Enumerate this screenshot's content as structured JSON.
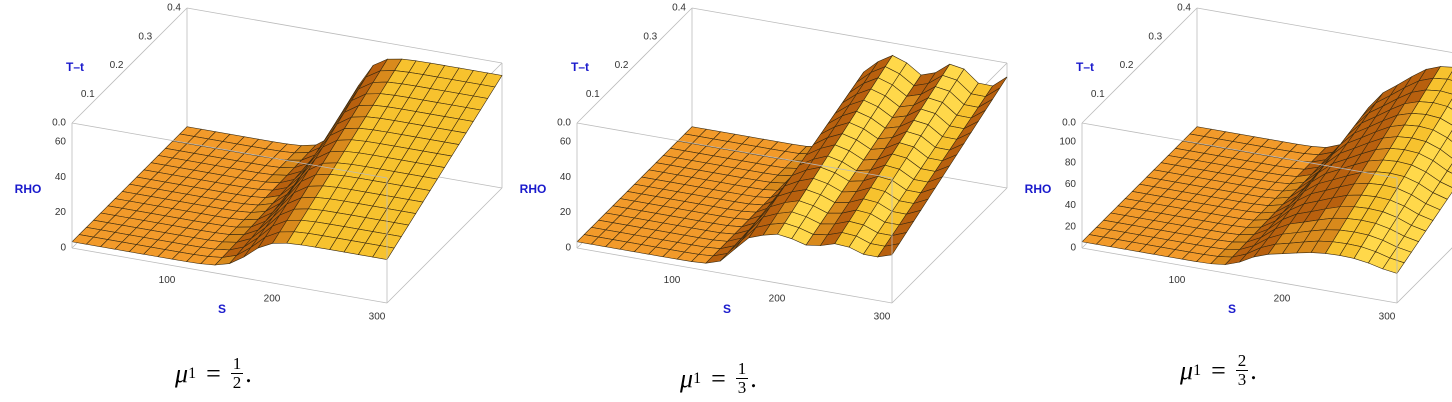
{
  "panels": [
    {
      "axes": {
        "t_label": "T–t",
        "rho_label": "RHO",
        "s_label": "S",
        "s_ticks": [
          "100",
          "200",
          "300"
        ],
        "rho_ticks": [
          "0",
          "20",
          "40",
          "60"
        ],
        "t_ticks": [
          "0.0",
          "0.1",
          "0.2",
          "0.3",
          "0.4"
        ]
      },
      "caption": {
        "symbol": "μ",
        "subscript": "1",
        "relation": "=",
        "numerator": "1",
        "denominator": "2",
        "end": "."
      }
    },
    {
      "axes": {
        "t_label": "T–t",
        "rho_label": "RHO",
        "s_label": "S",
        "s_ticks": [
          "100",
          "200",
          "300"
        ],
        "rho_ticks": [
          "0",
          "20",
          "40",
          "60"
        ],
        "t_ticks": [
          "0.0",
          "0.1",
          "0.2",
          "0.3",
          "0.4"
        ]
      },
      "caption": {
        "symbol": "μ",
        "subscript": "1",
        "relation": "=",
        "numerator": "1",
        "denominator": "3",
        "end": "."
      }
    },
    {
      "axes": {
        "t_label": "T–t",
        "rho_label": "RHO",
        "s_label": "S",
        "s_ticks": [
          "100",
          "200",
          "300"
        ],
        "rho_ticks": [
          "0",
          "20",
          "40",
          "60",
          "80",
          "100"
        ],
        "t_ticks": [
          "0.0",
          "0.1",
          "0.2",
          "0.3",
          "0.4"
        ]
      },
      "caption": {
        "symbol": "μ",
        "subscript": "1",
        "relation": "=",
        "numerator": "2",
        "denominator": "3",
        "end": "."
      }
    }
  ]
}
